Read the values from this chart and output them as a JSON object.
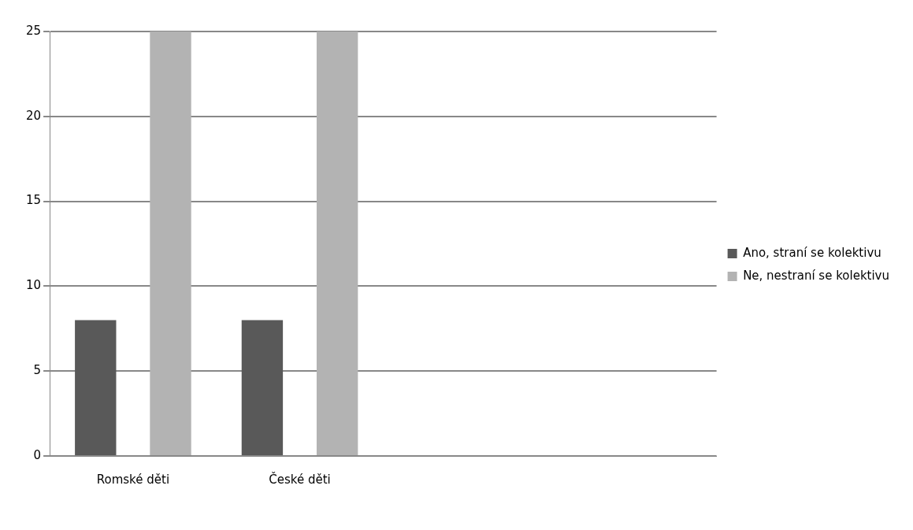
{
  "chart_data": {
    "type": "bar",
    "categories": [
      "Romské děti",
      "České děti",
      null,
      null
    ],
    "series": [
      {
        "name": "Ano, straní se kolektivu",
        "color": "#595959",
        "values": [
          8,
          8,
          null,
          null
        ]
      },
      {
        "name": "Ne, nestraní se kolektivu",
        "color": "#b3b3b3",
        "values": [
          25,
          25,
          null,
          null
        ]
      }
    ],
    "ylim": [
      0,
      25
    ],
    "yticks": [
      0,
      5,
      10,
      15,
      20,
      25
    ],
    "grid": "y",
    "legend": "right"
  }
}
